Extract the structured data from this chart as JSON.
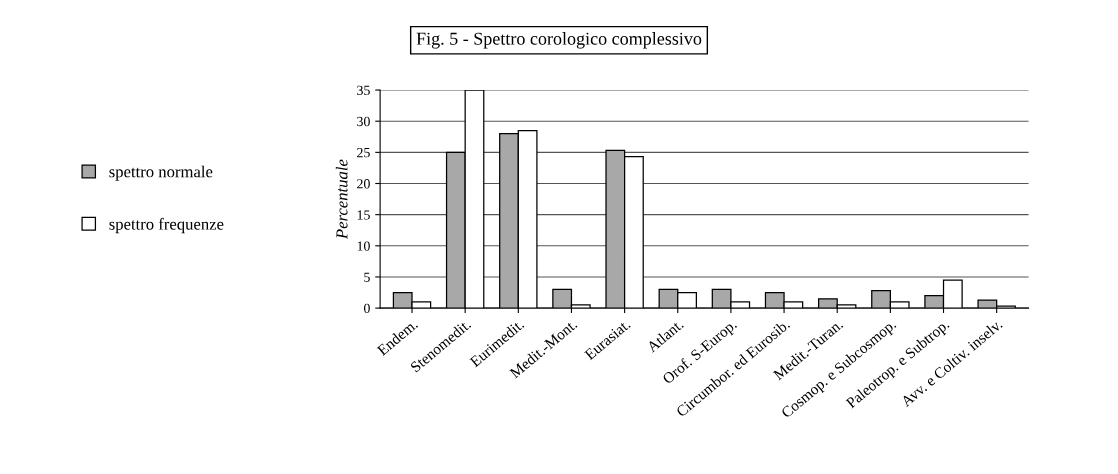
{
  "chart_data": {
    "type": "bar",
    "title": "Fig. 5 - Spettro corologico complessivo",
    "ylabel": "Percentuale",
    "categories": [
      "Endem.",
      "Stenomedit.",
      "Eurimedit.",
      "Medit.-Mont.",
      "Eurasiat.",
      "Atlant.",
      "Orof. S-Europ.",
      "Circumbor. ed Eurosib.",
      "Medit.-Turan.",
      "Cosmop. e Subcosmop.",
      "Paleotrop. e Subtrop.",
      "Avv. e Coltiv. inselv."
    ],
    "series": [
      {
        "name": "spettro normale",
        "color": "#a8a8a8",
        "values": [
          2.5,
          25,
          28,
          3,
          25.3,
          3,
          3,
          2.5,
          1.5,
          2.8,
          2,
          1.3
        ]
      },
      {
        "name": "spettro frequenze",
        "color": "#ffffff",
        "values": [
          1,
          35,
          28.5,
          0.5,
          24.3,
          2.5,
          1,
          1,
          0.5,
          1,
          4.5,
          0.3
        ]
      }
    ],
    "ylim": [
      0,
      35
    ],
    "yticks": [
      0,
      5,
      10,
      15,
      20,
      25,
      30,
      35
    ],
    "grid": "y",
    "legend": "left"
  }
}
